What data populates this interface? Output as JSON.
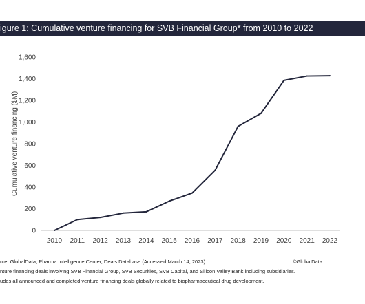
{
  "title": "igure 1: Cumulative venture financing for SVB Financial Group* from 2010 to 2022",
  "chart_data": {
    "type": "line",
    "title": "igure 1: Cumulative venture financing for SVB Financial Group* from 2010 to 2022",
    "xlabel": "",
    "ylabel": "Cumulative venture financing ($M)",
    "categories": [
      "2010",
      "2011",
      "2012",
      "2013",
      "2014",
      "2015",
      "2016",
      "2017",
      "2018",
      "2019",
      "2020",
      "2021",
      "2022"
    ],
    "series": [
      {
        "values": [
          0,
          100,
          120,
          160,
          172,
          270,
          345,
          555,
          960,
          1080,
          1385,
          1425,
          1428
        ]
      }
    ],
    "ylim": [
      0,
      1600
    ],
    "yticks": [
      "0",
      "200",
      "400",
      "600",
      "800",
      "1,000",
      "1,200",
      "1,400",
      "1,600"
    ],
    "grid": false,
    "line_color": "#23263b"
  },
  "footer": {
    "source": "rce: GlobalData, Pharma Intelligence Center, Deals Database (Accessed March 14, 2023)",
    "copyright": "©GlobalData",
    "note1": "nture financing deals involving SVB Financial Group, SVB Securities, SVB Capital, and Silicon Valley Bank including subsidiaries.",
    "note2": "udes all announced and completed venture financing deals globally related to biopharmaceutical drug development."
  }
}
